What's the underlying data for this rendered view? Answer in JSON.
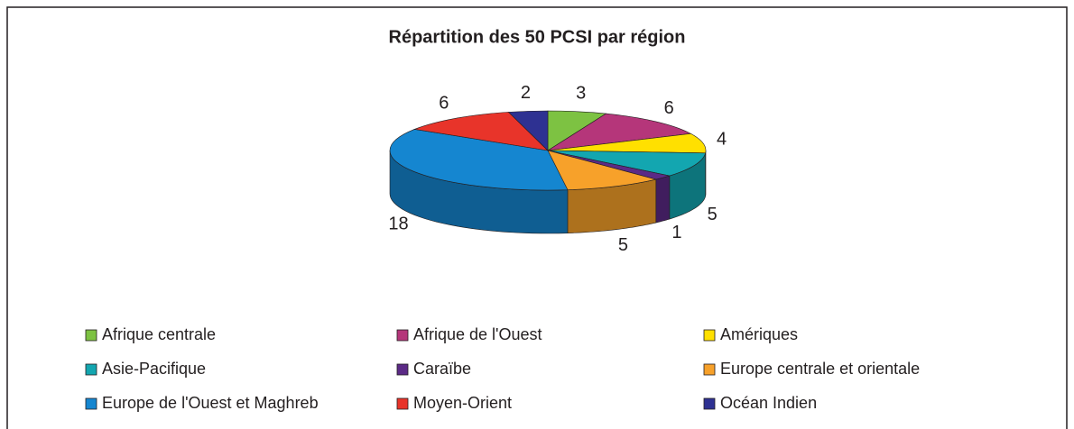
{
  "chart_data": {
    "type": "pie3d",
    "title": "Répartition des 50 PCSI par région",
    "categories": [
      "Afrique centrale",
      "Afrique de l'Ouest",
      "Amériques",
      "Asie-Pacifique",
      "Caraïbe",
      "Europe centrale et orientale",
      "Europe de l'Ouest et Maghreb",
      "Moyen-Orient",
      "Océan Indien"
    ],
    "values": [
      3,
      6,
      4,
      5,
      1,
      5,
      18,
      6,
      2
    ],
    "colors": [
      "#7dc242",
      "#b5367a",
      "#ffe000",
      "#13a6b0",
      "#5b2a86",
      "#f7a12a",
      "#1586d0",
      "#e8342a",
      "#2e3192"
    ],
    "legend": "bottom"
  }
}
